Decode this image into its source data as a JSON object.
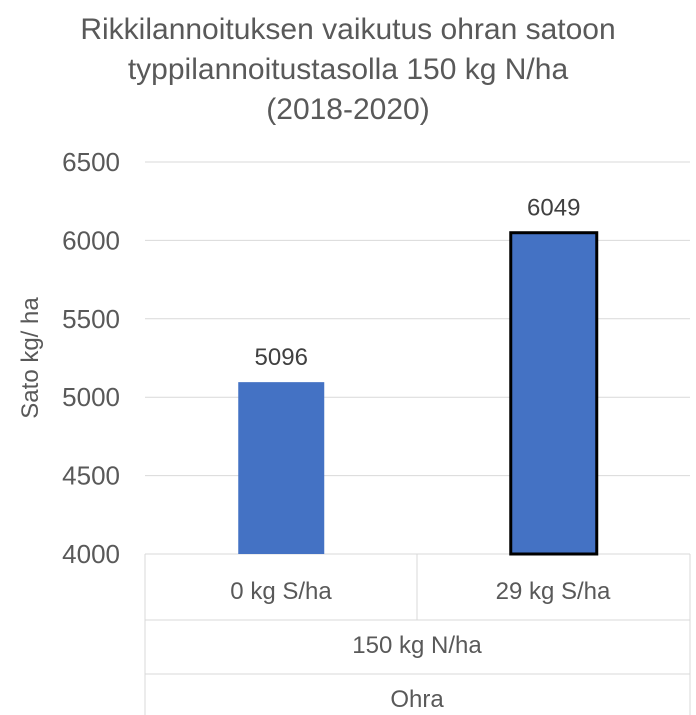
{
  "chart_data": {
    "type": "bar",
    "title_lines": [
      "Rikkilannoituksen vaikutus ohran satoon",
      "typpilannoitustasolla 150 kg N/ha",
      "(2018-2020)"
    ],
    "ylabel": "Sato kg/ ha",
    "ylim": [
      4000,
      6500
    ],
    "yticks": [
      "4000",
      "4500",
      "5000",
      "5500",
      "6000",
      "6500"
    ],
    "categories": [
      "0 kg S/ha",
      "29 kg S/ha"
    ],
    "group_label": "150 kg N/ha",
    "outer_group_label": "Ohra",
    "values": [
      5096,
      6049
    ],
    "data_labels": [
      "5096",
      "6049"
    ],
    "bar_color": "#4472C4",
    "highlight_border_color": "#000000",
    "gridline_color": "#D9D9D9",
    "grid": true
  }
}
